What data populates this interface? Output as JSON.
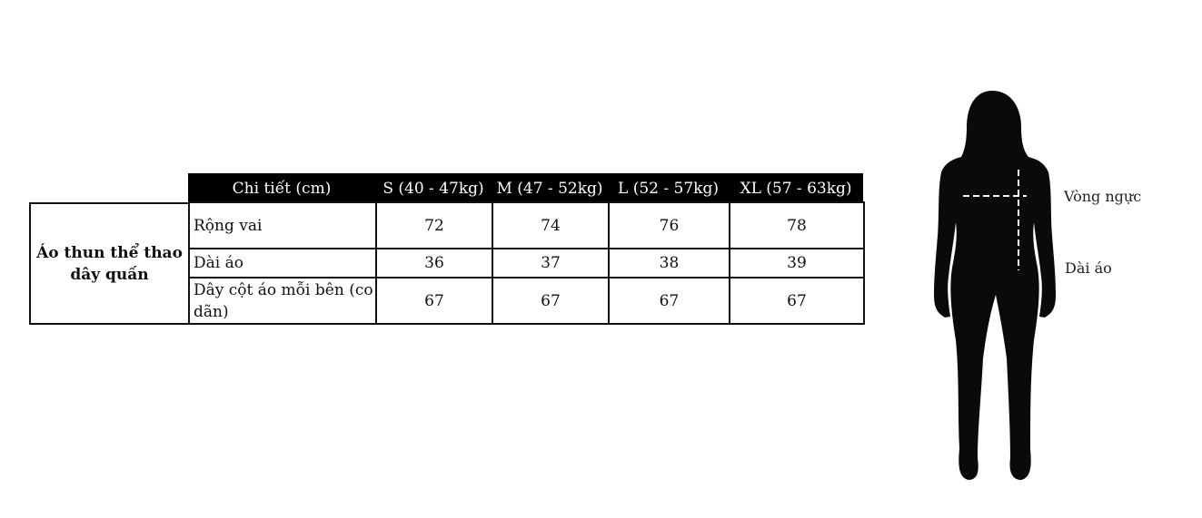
{
  "table": {
    "product": "Áo thun thể thao dây quấn",
    "headers": [
      "Chi tiết (cm)",
      "S (40 - 47kg)",
      "M (47 - 52kg)",
      "L (52 - 57kg)",
      "XL (57 - 63kg)"
    ],
    "rows": [
      {
        "label": "Rộng vai",
        "values": [
          "72",
          "74",
          "76",
          "78"
        ]
      },
      {
        "label": "Dài áo",
        "values": [
          "36",
          "37",
          "38",
          "39"
        ]
      },
      {
        "label": "Dây cột áo mỗi bên (co dãn)",
        "values": [
          "67",
          "67",
          "67",
          "67"
        ]
      }
    ]
  },
  "figure": {
    "icon": "woman-silhouette-icon",
    "labels": {
      "chest": "Vòng ngực",
      "length": "Dài áo"
    }
  }
}
